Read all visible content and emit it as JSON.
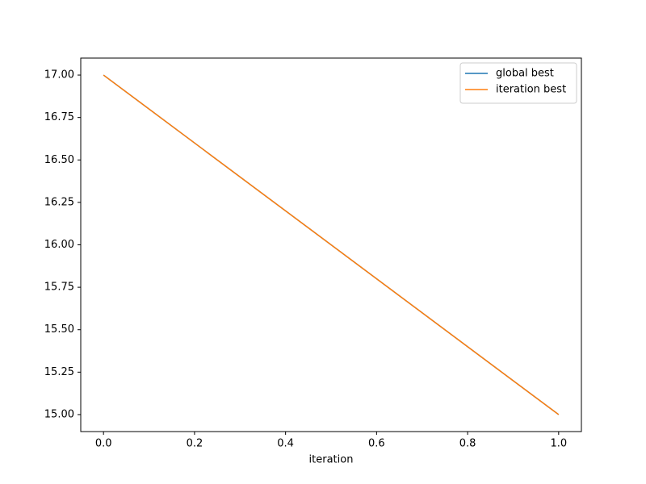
{
  "chart_data": {
    "type": "line",
    "xlabel": "iteration",
    "x": [
      0,
      1
    ],
    "series": [
      {
        "name": "global best",
        "color": "#1f77b4",
        "values": [
          17,
          15
        ]
      },
      {
        "name": "iteration best",
        "color": "#ff7f0e",
        "values": [
          17,
          15
        ]
      }
    ],
    "xlim": [
      -0.05,
      1.05
    ],
    "xticks": [
      {
        "value": 0,
        "label": "0.0"
      },
      0.2,
      0.4,
      0.6,
      0.8,
      {
        "value": 1,
        "label": "1.0"
      }
    ],
    "ylim": [
      14.9,
      17.1
    ],
    "yticks": [
      {
        "value": 15,
        "label": "15.00"
      },
      {
        "value": 15.25,
        "label": "15.25"
      },
      {
        "value": 15.5,
        "label": "15.50"
      },
      {
        "value": 15.75,
        "label": "15.75"
      },
      {
        "value": 16,
        "label": "16.00"
      },
      {
        "value": 16.25,
        "label": "16.25"
      },
      {
        "value": 16.5,
        "label": "16.50"
      },
      {
        "value": 16.75,
        "label": "16.75"
      },
      {
        "value": 17,
        "label": "17.00"
      }
    ],
    "grid": false,
    "legend": "upper right"
  }
}
